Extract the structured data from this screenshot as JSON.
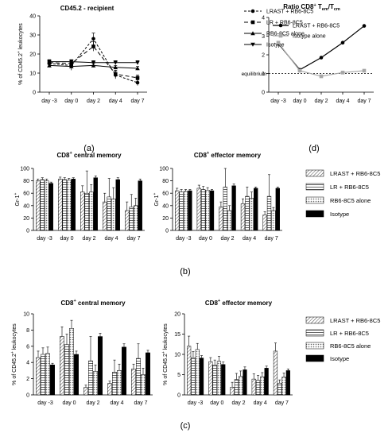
{
  "panel_labels": {
    "a": "(a)",
    "b": "(b)",
    "c": "(c)",
    "d": "(d)"
  },
  "chart_data": [
    {
      "id": "a",
      "type": "line",
      "title": "CD45.2 - recipient",
      "xlabel": "",
      "ylabel": "% of CD45.2+ leukocytes",
      "categories": [
        "day -3",
        "day 0",
        "day 2",
        "day 4",
        "day 7"
      ],
      "ylim": [
        0,
        40
      ],
      "yticks": [
        0,
        10,
        20,
        30,
        40
      ],
      "legend_position": "right",
      "series": [
        {
          "name": "LRAST + RB6-8C5",
          "marker": "circle",
          "dash": "3,2",
          "values": [
            15,
            14,
            28,
            9,
            5
          ],
          "errors": [
            1.5,
            2.5,
            3,
            2,
            1.5
          ]
        },
        {
          "name": "LR + RB6-8C5",
          "marker": "square",
          "dash": "5,3",
          "values": [
            15.5,
            15,
            24,
            9.5,
            7.5
          ],
          "errors": [
            1.5,
            2,
            2.5,
            2,
            1.5
          ]
        },
        {
          "name": "RB6-8C5 alone",
          "marker": "triangle",
          "dash": "",
          "values": [
            14,
            13.5,
            14,
            13,
            12.5
          ],
          "errors": [
            1,
            1,
            1,
            1,
            1
          ]
        },
        {
          "name": "Isotype",
          "marker": "down-triangle",
          "dash": "",
          "values": [
            16,
            16,
            15.5,
            15.5,
            15.5
          ],
          "errors": [
            1,
            1,
            1,
            1,
            1
          ]
        }
      ]
    },
    {
      "id": "d",
      "type": "line",
      "title": "Ratio CD8+ Tem/Tcm",
      "xlabel": "",
      "ylabel": "",
      "categories": [
        "day -3",
        "day 0",
        "day 2",
        "day 4",
        "day 7"
      ],
      "ylim": [
        0,
        4
      ],
      "yticks": [
        0,
        1,
        2,
        3,
        4
      ],
      "reference_line": {
        "value": 1,
        "label": "equilibrium"
      },
      "legend_position": "top-left",
      "series": [
        {
          "name": "LRAST + RB6-8C5",
          "color": "#000000",
          "marker": "circle",
          "values": [
            2.6,
            1.2,
            1.85,
            2.65,
            3.55
          ]
        },
        {
          "name": "Isotype alone",
          "color": "#a8a8a8",
          "marker": "square",
          "values": [
            2.65,
            1.15,
            0.85,
            1.05,
            1.15
          ]
        }
      ]
    },
    {
      "id": "b1",
      "type": "bar",
      "title": "CD8+ central memory",
      "xlabel": "",
      "ylabel": "Gr-1+",
      "categories": [
        "day -3",
        "day 0",
        "day 2",
        "day 4",
        "day 7"
      ],
      "ylim": [
        0,
        100
      ],
      "yticks": [
        0,
        20,
        40,
        60,
        80,
        100
      ],
      "series": [
        {
          "name": "LRAST + RB6-8C5",
          "values": [
            80,
            83,
            62,
            46,
            32
          ],
          "errors": [
            3,
            3,
            10,
            14,
            14
          ]
        },
        {
          "name": "LR + RB6-8C5",
          "values": [
            82,
            82,
            60,
            54,
            38
          ],
          "errors": [
            3,
            3,
            36,
            30,
            20
          ]
        },
        {
          "name": "RB6-8C5 alone",
          "values": [
            80,
            81,
            62,
            51,
            40
          ],
          "errors": [
            3,
            3,
            12,
            18,
            12
          ]
        },
        {
          "name": "Isotype",
          "values": [
            76,
            83,
            85,
            82,
            80
          ],
          "errors": [
            2,
            2,
            3,
            3,
            3
          ]
        }
      ]
    },
    {
      "id": "b2",
      "type": "bar",
      "title": "CD8+ effector memory",
      "xlabel": "",
      "ylabel": "Gr-1+",
      "categories": [
        "day -3",
        "day 0",
        "day 2",
        "day 4",
        "day 7"
      ],
      "ylim": [
        0,
        100
      ],
      "yticks": [
        0,
        20,
        40,
        60,
        80,
        100
      ],
      "series": [
        {
          "name": "LRAST + RB6-8C5",
          "values": [
            64,
            68,
            38,
            43,
            25
          ],
          "errors": [
            4,
            5,
            8,
            8,
            5
          ]
        },
        {
          "name": "LR + RB6-8C5",
          "values": [
            62,
            66,
            70,
            55,
            55
          ],
          "errors": [
            4,
            5,
            30,
            15,
            35
          ]
        },
        {
          "name": "RB6-8C5 alone",
          "values": [
            63,
            65,
            32,
            52,
            32
          ],
          "errors": [
            3,
            4,
            8,
            10,
            5
          ]
        },
        {
          "name": "Isotype",
          "values": [
            64,
            64,
            72,
            68,
            68
          ],
          "errors": [
            2,
            2,
            3,
            2,
            2
          ]
        }
      ]
    },
    {
      "id": "c1",
      "type": "bar",
      "title": "CD8+ central memory",
      "xlabel": "",
      "ylabel": "% of CD45.2+ leukocytes",
      "categories": [
        "day -3",
        "day 0",
        "day 2",
        "day 4",
        "day 7"
      ],
      "ylim": [
        0,
        10
      ],
      "yticks": [
        0,
        2,
        4,
        6,
        8,
        10
      ],
      "series": [
        {
          "name": "LRAST + RB6-8C5",
          "values": [
            4.6,
            7.2,
            0.9,
            1.4,
            3.2
          ],
          "errors": [
            0.8,
            1.2,
            0.3,
            0.3,
            0.6
          ]
        },
        {
          "name": "LR + RB6-8C5",
          "values": [
            5.0,
            6.2,
            4.2,
            2.8,
            4.5
          ],
          "errors": [
            0.8,
            1.3,
            3.0,
            1.5,
            1.8
          ]
        },
        {
          "name": "RB6-8C5 alone",
          "values": [
            5.1,
            8.2,
            2.9,
            3.0,
            2.5
          ],
          "errors": [
            0.8,
            1.0,
            0.8,
            0.8,
            0.8
          ]
        },
        {
          "name": "Isotype",
          "values": [
            3.7,
            5.0,
            7.2,
            5.9,
            5.2
          ],
          "errors": [
            0.2,
            0.4,
            0.4,
            0.4,
            0.3
          ]
        }
      ]
    },
    {
      "id": "c2",
      "type": "bar",
      "title": "CD8+ effector memory",
      "xlabel": "",
      "ylabel": "% of CD45.2+ leukocytes",
      "categories": [
        "day -3",
        "day 0",
        "day 2",
        "day 4",
        "day 7"
      ],
      "ylim": [
        0,
        20
      ],
      "yticks": [
        0,
        5,
        10,
        15,
        20
      ],
      "series": [
        {
          "name": "LRAST + RB6-8C5",
          "values": [
            12.0,
            8.2,
            1.9,
            3.9,
            10.8
          ],
          "errors": [
            2.5,
            1.0,
            1.2,
            1.3,
            2.0
          ]
        },
        {
          "name": "LR + RB6-8C5",
          "values": [
            9.2,
            7.4,
            3.8,
            3.6,
            2.9
          ],
          "errors": [
            1.5,
            1.2,
            1.5,
            1.2,
            0.8
          ]
        },
        {
          "name": "RB6-8C5 alone",
          "values": [
            11.2,
            8.3,
            4.6,
            4.5,
            4.4
          ],
          "errors": [
            1.5,
            1.2,
            1.3,
            1.0,
            1.0
          ]
        },
        {
          "name": "Isotype",
          "values": [
            9.1,
            7.5,
            6.2,
            6.6,
            6.0
          ],
          "errors": [
            0.6,
            0.6,
            0.7,
            0.5,
            0.4
          ]
        }
      ]
    }
  ]
}
